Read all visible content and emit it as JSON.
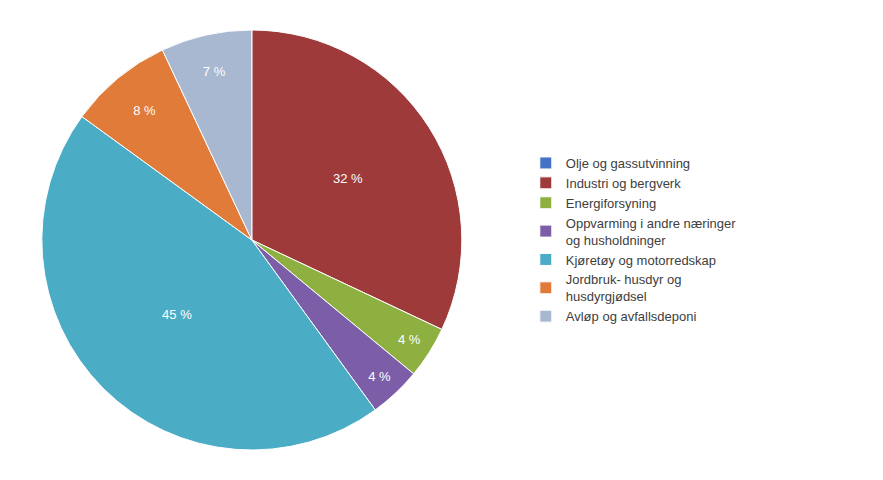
{
  "chart_data": {
    "type": "pie",
    "categories": [
      "Olje og gassutvinning",
      "Industri og bergverk",
      "Energiforsyning",
      "Oppvarming i andre næringer\nog husholdninger",
      "Kjøretøy og motorredskap",
      "Jordbruk- husdyr og\nhusdyrgjødsel",
      "Avløp og avfallsdeponi"
    ],
    "values": [
      0,
      32,
      4,
      4,
      45,
      8,
      7
    ],
    "value_labels": [
      null,
      "32 %",
      "4 %",
      "4 %",
      "45 %",
      "8 %",
      "7 %"
    ],
    "colors": [
      "#4472C4",
      "#9E3A3A",
      "#8DB040",
      "#7B5EA7",
      "#4BACC6",
      "#E07B39",
      "#A8B8D0"
    ],
    "data_labels": true,
    "legend": "right"
  }
}
